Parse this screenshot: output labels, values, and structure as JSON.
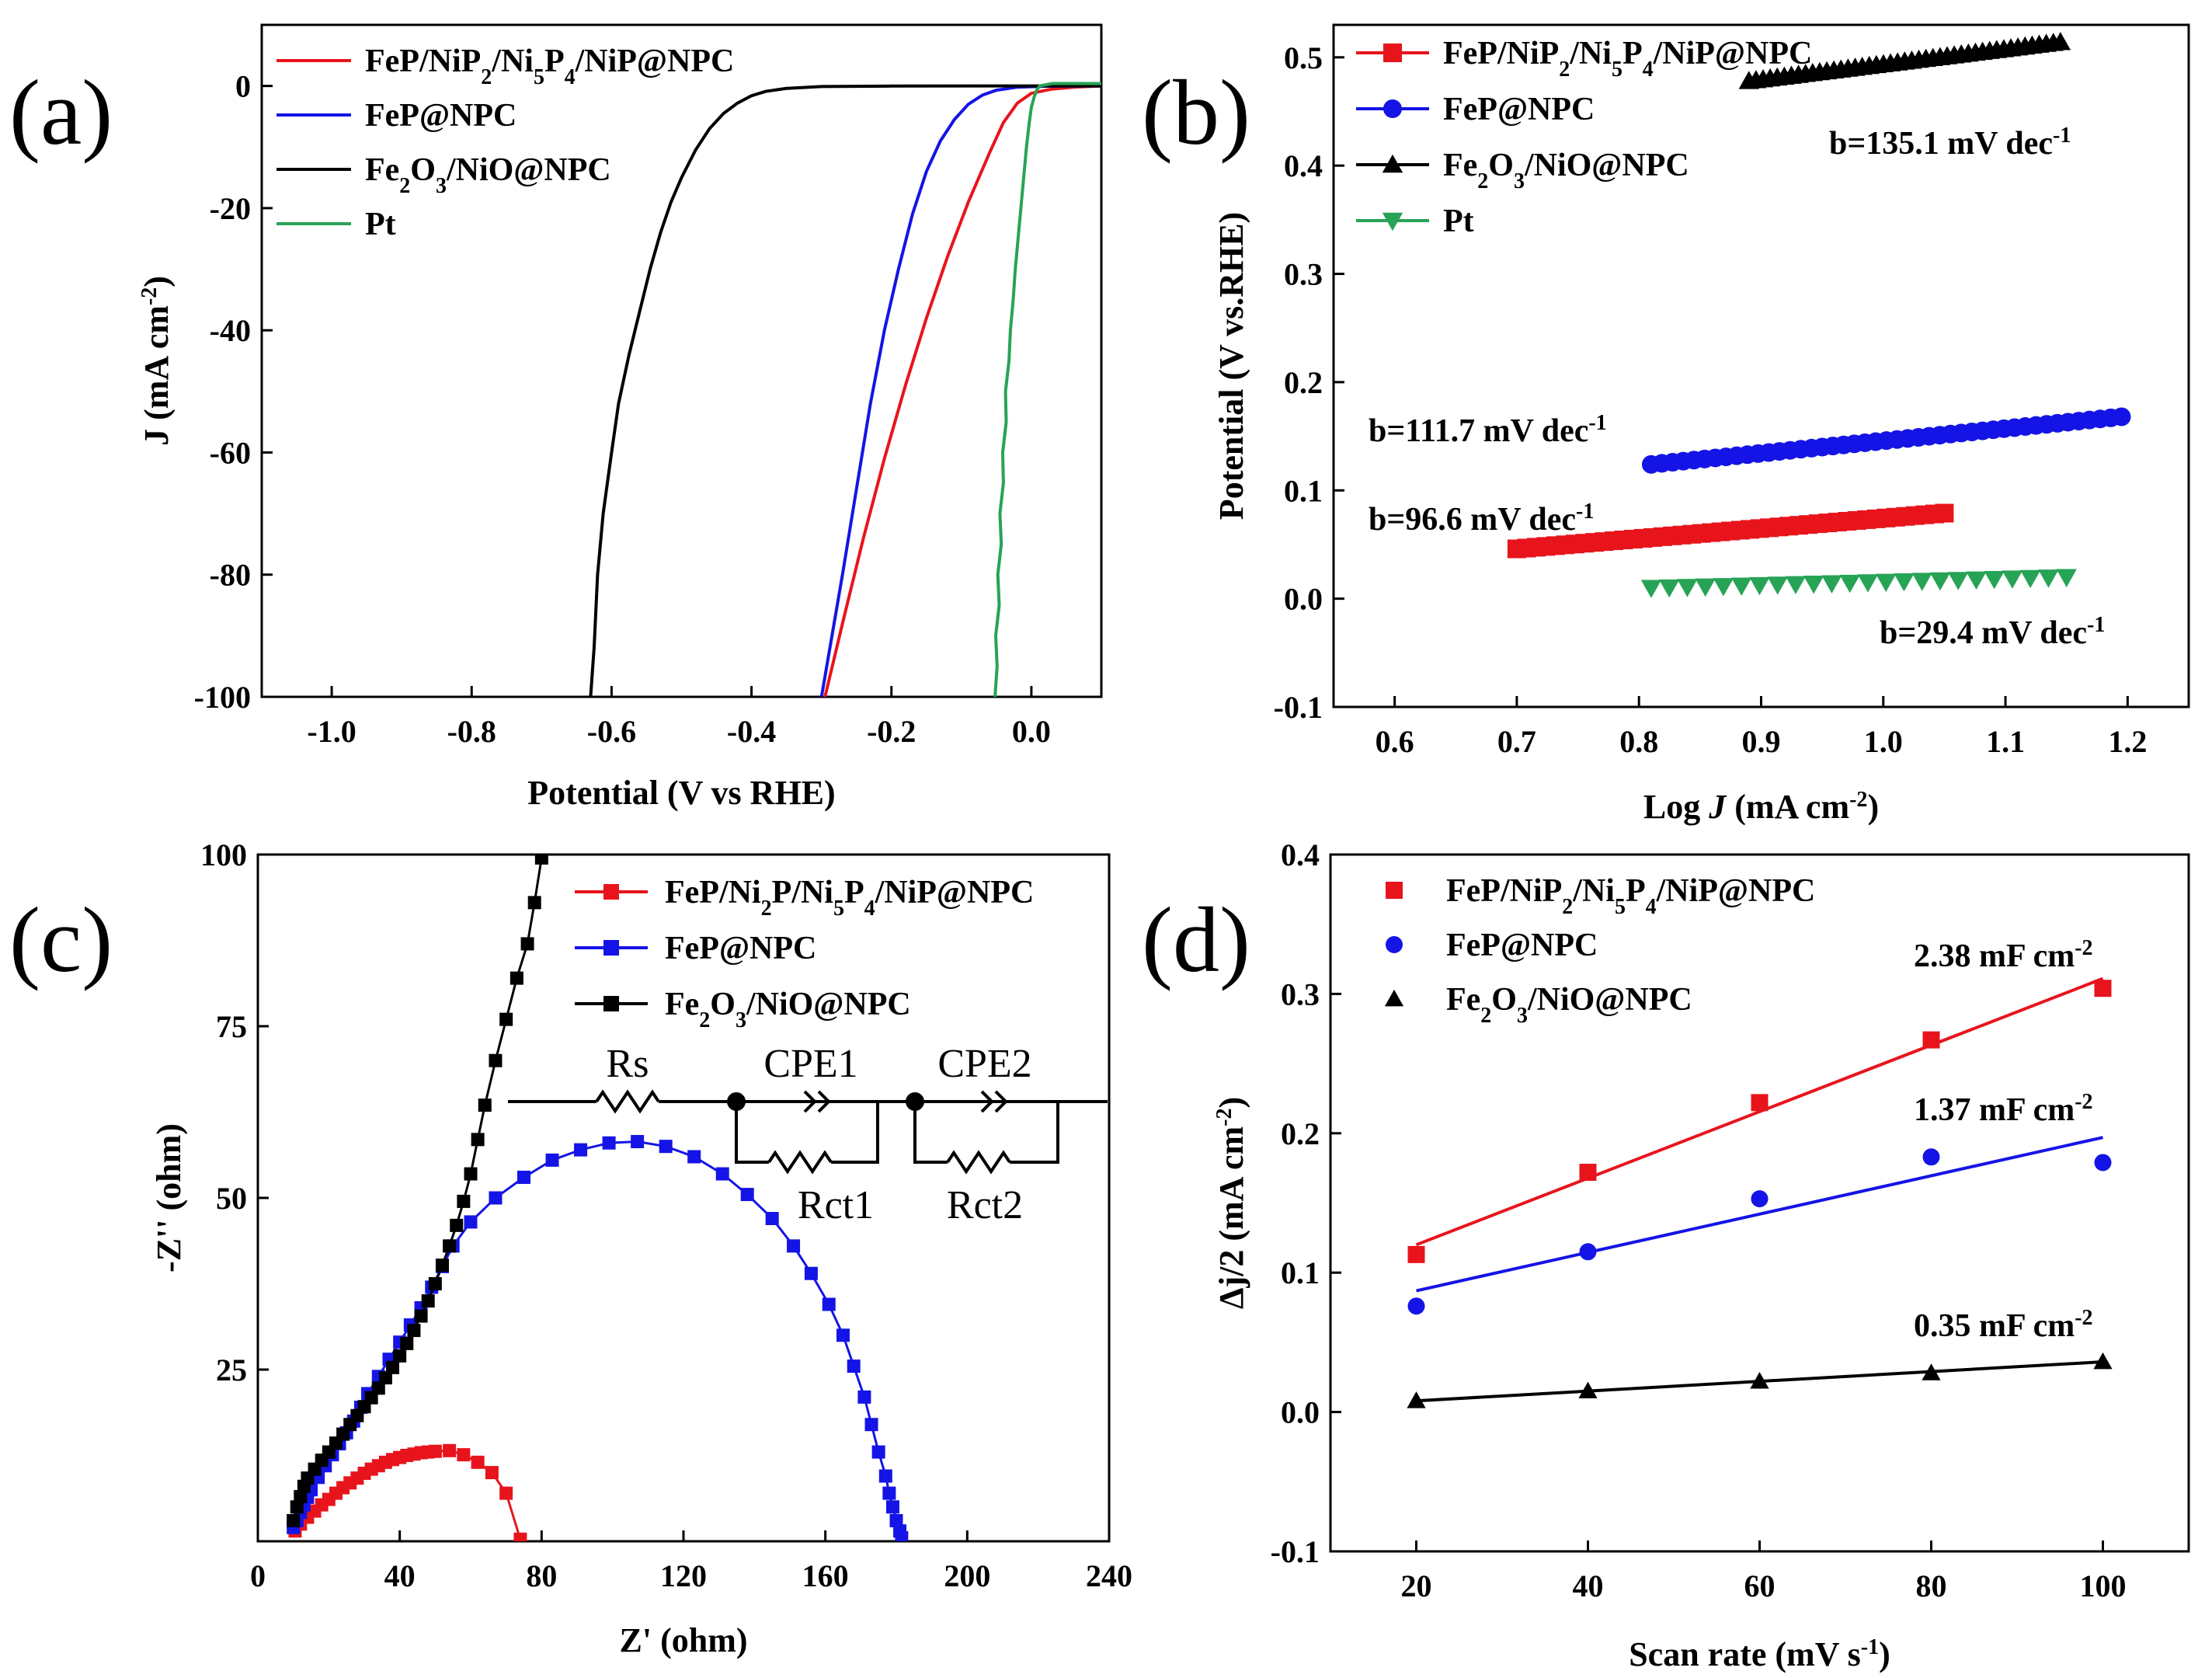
{
  "colors": {
    "red": "#e8141c",
    "blue": "#1414e6",
    "black": "#000000",
    "green": "#27a356"
  },
  "chart_data": [
    {
      "panel_label": "(a)",
      "type": "line",
      "xlabel": "Potential (V vs RHE)",
      "ylabel_main": "J (mA cm",
      "ylabel_sup": "-2",
      "ylabel_end": ")",
      "xlim": [
        -1.1,
        0.1
      ],
      "ylim": [
        -100,
        10
      ],
      "xticks": [
        -1.0,
        -0.8,
        -0.6,
        -0.4,
        -0.2,
        0.0
      ],
      "xtick_labels": [
        "-1.0",
        "-0.8",
        "-0.6",
        "-0.4",
        "-0.2",
        "0.0"
      ],
      "yticks": [
        0,
        -20,
        -40,
        -60,
        -80,
        -100
      ],
      "ytick_labels": [
        "0",
        "-20",
        "-40",
        "-60",
        "-80",
        "-100"
      ],
      "legend": [
        {
          "parts": [
            [
              "FeP/NiP",
              ""
            ],
            [
              "2",
              "sub"
            ],
            [
              "/Ni",
              ""
            ],
            [
              "5",
              "sub"
            ],
            [
              "P",
              ""
            ],
            [
              "4",
              "sub"
            ],
            [
              "/NiP@NPC",
              ""
            ]
          ],
          "color": "red"
        },
        {
          "parts": [
            [
              "FeP@NPC",
              ""
            ]
          ],
          "color": "blue"
        },
        {
          "parts": [
            [
              "Fe",
              ""
            ],
            [
              "2",
              "sub"
            ],
            [
              "O",
              ""
            ],
            [
              "3",
              "sub"
            ],
            [
              "/NiO@NPC",
              ""
            ]
          ],
          "color": "black"
        },
        {
          "parts": [
            [
              "Pt",
              ""
            ]
          ],
          "color": "green"
        }
      ],
      "series": [
        {
          "name": "FeP/NiP2/Ni5P4/NiP@NPC",
          "color": "red",
          "x": [
            -0.295,
            -0.27,
            -0.24,
            -0.21,
            -0.18,
            -0.15,
            -0.12,
            -0.09,
            -0.06,
            -0.04,
            -0.02,
            0.0,
            0.03,
            0.06,
            0.1
          ],
          "y": [
            -100,
            -88,
            -74,
            -61,
            -49,
            -38,
            -28,
            -19,
            -11,
            -6,
            -2.8,
            -1.2,
            -0.5,
            -0.2,
            0
          ]
        },
        {
          "name": "FeP@NPC",
          "color": "blue",
          "x": [
            -0.3,
            -0.285,
            -0.27,
            -0.25,
            -0.23,
            -0.21,
            -0.19,
            -0.17,
            -0.15,
            -0.13,
            -0.11,
            -0.09,
            -0.07,
            -0.05,
            -0.02,
            0.02,
            0.1
          ],
          "y": [
            -100,
            -90,
            -80,
            -66,
            -52,
            -40,
            -30,
            -21,
            -14,
            -9,
            -5.5,
            -3,
            -1.5,
            -0.7,
            -0.2,
            -0.05,
            0
          ]
        },
        {
          "name": "Fe2O3/NiO@NPC",
          "color": "black",
          "x": [
            -0.63,
            -0.625,
            -0.62,
            -0.612,
            -0.6,
            -0.59,
            -0.575,
            -0.56,
            -0.545,
            -0.53,
            -0.515,
            -0.5,
            -0.48,
            -0.46,
            -0.44,
            -0.42,
            -0.4,
            -0.38,
            -0.35,
            -0.3,
            -0.2,
            0.0,
            0.1
          ],
          "y": [
            -100,
            -92,
            -80,
            -70,
            -60,
            -52,
            -44,
            -37,
            -30,
            -24,
            -19,
            -15,
            -10.5,
            -7,
            -4.5,
            -2.8,
            -1.6,
            -0.9,
            -0.4,
            -0.1,
            -0.02,
            0,
            0
          ]
        },
        {
          "name": "Pt",
          "color": "green",
          "x": [
            -0.052,
            -0.049,
            -0.051,
            -0.046,
            -0.048,
            -0.043,
            -0.045,
            -0.04,
            -0.041,
            -0.036,
            -0.037,
            -0.032,
            -0.03,
            -0.026,
            -0.023,
            -0.019,
            -0.015,
            -0.011,
            -0.007,
            -0.003,
            0.0,
            0.004,
            0.008,
            0.012,
            0.03,
            0.1
          ],
          "y": [
            -100,
            -95,
            -90,
            -85,
            -80,
            -75,
            -70,
            -65,
            -60,
            -55,
            -50,
            -45,
            -40,
            -35,
            -30,
            -25,
            -20,
            -15,
            -10,
            -6,
            -3.5,
            -1.8,
            -0.6,
            0,
            0.4,
            0.4
          ]
        }
      ]
    },
    {
      "panel_label": "(b)",
      "type": "scatter",
      "xlabel_pre": "Log ",
      "xlabel_italic": "J",
      "xlabel_main": " (mA cm",
      "xlabel_sup": "-2",
      "xlabel_end": ")",
      "ylabel": "Potential (V vs.RHE)",
      "xlim": [
        0.55,
        1.25
      ],
      "ylim": [
        -0.1,
        0.53
      ],
      "xticks": [
        0.6,
        0.7,
        0.8,
        0.9,
        1.0,
        1.1,
        1.2
      ],
      "xtick_labels": [
        "0.6",
        "0.7",
        "0.8",
        "0.9",
        "1.0",
        "1.1",
        "1.2"
      ],
      "yticks": [
        -0.1,
        0.0,
        0.1,
        0.2,
        0.3,
        0.4,
        0.5
      ],
      "ytick_labels": [
        "-0.1",
        "0.0",
        "0.1",
        "0.2",
        "0.3",
        "0.4",
        "0.5"
      ],
      "legend": [
        {
          "parts": [
            [
              "FeP/NiP",
              ""
            ],
            [
              "2",
              "sub"
            ],
            [
              "/Ni",
              ""
            ],
            [
              "5",
              "sub"
            ],
            [
              "P",
              ""
            ],
            [
              "4",
              "sub"
            ],
            [
              "/NiP@NPC",
              ""
            ]
          ],
          "color": "red",
          "marker": "square"
        },
        {
          "parts": [
            [
              "FeP@NPC",
              ""
            ]
          ],
          "color": "blue",
          "marker": "circle"
        },
        {
          "parts": [
            [
              "Fe",
              ""
            ],
            [
              "2",
              "sub"
            ],
            [
              "O",
              ""
            ],
            [
              "3",
              "sub"
            ],
            [
              "/NiO@NPC",
              ""
            ]
          ],
          "color": "black",
          "marker": "triangle"
        },
        {
          "parts": [
            [
              "Pt",
              ""
            ]
          ],
          "color": "green",
          "marker": "triangle-down"
        }
      ],
      "series": [
        {
          "name": "FeP/NiP2/Ni5P4/NiP@NPC",
          "color": "red",
          "marker": "square",
          "x_start": 0.7,
          "x_end": 1.05,
          "y_start": 0.046,
          "y_end": 0.079,
          "n": 45
        },
        {
          "name": "FeP@NPC",
          "color": "blue",
          "marker": "circle",
          "x_start": 0.81,
          "x_end": 1.195,
          "y_start": 0.124,
          "y_end": 0.168,
          "n": 45
        },
        {
          "name": "Fe2O3/NiO@NPC",
          "color": "black",
          "marker": "triangle",
          "x_start": 0.89,
          "x_end": 1.145,
          "y_start": 0.478,
          "y_end": 0.514,
          "n": 45
        },
        {
          "name": "Pt",
          "color": "green",
          "marker": "triangle-down",
          "x_start": 0.81,
          "x_end": 1.15,
          "y_start": 0.01,
          "y_end": 0.02,
          "n": 24
        }
      ],
      "annotations": [
        {
          "main": "b=135.1 mV dec",
          "sup": "-1"
        },
        {
          "main": "b=111.7 mV dec",
          "sup": "-1"
        },
        {
          "main": "b=96.6 mV dec",
          "sup": "-1"
        },
        {
          "main": "b=29.4 mV dec",
          "sup": "-1"
        }
      ]
    },
    {
      "panel_label": "(c)",
      "type": "scatter",
      "xlabel": "Z' (ohm)",
      "ylabel": "-Z'' (ohm)",
      "xlim": [
        0,
        240
      ],
      "ylim": [
        0,
        100
      ],
      "xticks": [
        0,
        40,
        80,
        120,
        160,
        200,
        240
      ],
      "xtick_labels": [
        "0",
        "40",
        "80",
        "120",
        "160",
        "200",
        "240"
      ],
      "yticks": [
        25,
        50,
        75,
        100
      ],
      "ytick_labels": [
        "25",
        "50",
        "75",
        "100"
      ],
      "legend": [
        {
          "parts": [
            [
              "FeP/Ni",
              ""
            ],
            [
              "2",
              "sub"
            ],
            [
              "P/Ni",
              ""
            ],
            [
              "5",
              "sub"
            ],
            [
              "P",
              ""
            ],
            [
              "4",
              "sub"
            ],
            [
              "/NiP@NPC",
              ""
            ]
          ],
          "color": "red",
          "marker": "square"
        },
        {
          "parts": [
            [
              "FeP@NPC",
              ""
            ]
          ],
          "color": "blue",
          "marker": "square"
        },
        {
          "parts": [
            [
              "Fe",
              ""
            ],
            [
              "2",
              "sub"
            ],
            [
              "O",
              ""
            ],
            [
              "3",
              "sub"
            ],
            [
              "/NiO@NPC",
              ""
            ]
          ],
          "color": "black",
          "marker": "square"
        }
      ],
      "circuit_labels": {
        "rs": "Rs",
        "cpe1": "CPE1",
        "cpe2": "CPE2",
        "rct1": "Rct1",
        "rct2": "Rct2"
      },
      "series": [
        {
          "name": "FeP/Ni2P/Ni5P4/NiP@NPC",
          "color": "red",
          "x": [
            10.5,
            12,
            14,
            16,
            18,
            20,
            22,
            24,
            26,
            28,
            30,
            32,
            34,
            36,
            38,
            40,
            42,
            44,
            46,
            48,
            50,
            54,
            58,
            62,
            66,
            70,
            74
          ],
          "y": [
            1.5,
            2.5,
            3.5,
            4.4,
            5.3,
            6.1,
            7.0,
            7.8,
            8.5,
            9.2,
            9.9,
            10.5,
            11.0,
            11.5,
            11.9,
            12.2,
            12.5,
            12.7,
            12.9,
            13.0,
            13.1,
            13.2,
            12.6,
            11.5,
            10.0,
            7.0,
            0.3
          ]
        },
        {
          "name": "FeP@NPC",
          "color": "blue",
          "x": [
            10,
            11,
            12,
            13,
            14,
            15,
            17,
            19,
            21,
            23,
            25,
            27,
            29,
            31,
            34,
            37,
            40,
            43,
            46,
            49,
            52,
            55,
            60,
            67,
            75,
            83,
            91,
            99,
            107,
            115,
            123,
            131,
            138,
            145,
            151,
            156,
            161,
            165,
            168,
            171,
            173,
            175,
            177,
            178,
            179,
            180,
            181,
            181.5
          ],
          "y": [
            2,
            3,
            4.2,
            5.3,
            6.4,
            7.5,
            9.3,
            11,
            12.6,
            14.2,
            15.8,
            17.5,
            19.5,
            21.5,
            24,
            26.5,
            29,
            31.5,
            34,
            37,
            40,
            43,
            46.5,
            50,
            53,
            55.5,
            57,
            58,
            58.2,
            57.5,
            56,
            53.5,
            50.5,
            47,
            43,
            39,
            34.5,
            30,
            25.5,
            21,
            17,
            13,
            9.5,
            7,
            5,
            3,
            1.5,
            0.5
          ]
        },
        {
          "name": "Fe2O3/NiO@NPC",
          "color": "black",
          "x": [
            10,
            11,
            12,
            13,
            14,
            16,
            18,
            20,
            22,
            24,
            26,
            28,
            30,
            32,
            34,
            36,
            38,
            40,
            42,
            44,
            46,
            48,
            50,
            52,
            54,
            56,
            58,
            60,
            62,
            64,
            67,
            70,
            73,
            76,
            78,
            80
          ],
          "y": [
            3,
            5,
            6.5,
            8,
            9.2,
            10.5,
            11.8,
            13,
            14.3,
            15.6,
            17,
            18.3,
            19.6,
            20.9,
            22.3,
            23.8,
            25.3,
            27,
            28.8,
            30.7,
            32.8,
            35,
            37.5,
            40.2,
            43,
            46,
            49.5,
            53.5,
            58.5,
            63.5,
            70,
            76,
            82,
            87,
            93,
            99.5
          ]
        }
      ]
    },
    {
      "panel_label": "(d)",
      "type": "scatter",
      "xlabel_main": "Scan rate (mV s",
      "xlabel_sup": "-1",
      "xlabel_end": ")",
      "ylabel_main": "Δj/2 (mA cm",
      "ylabel_sup": "-2",
      "ylabel_end": ")",
      "xlim": [
        10,
        110
      ],
      "ylim": [
        -0.1,
        0.4
      ],
      "xticks": [
        20,
        40,
        60,
        80,
        100
      ],
      "xtick_labels": [
        "20",
        "40",
        "60",
        "80",
        "100"
      ],
      "yticks": [
        -0.1,
        0.0,
        0.1,
        0.2,
        0.3,
        0.4
      ],
      "ytick_labels": [
        "-0.1",
        "0.0",
        "0.1",
        "0.2",
        "0.3",
        "0.4"
      ],
      "legend": [
        {
          "parts": [
            [
              "FeP/NiP",
              ""
            ],
            [
              "2",
              "sub"
            ],
            [
              "/Ni",
              ""
            ],
            [
              "5",
              "sub"
            ],
            [
              "P",
              ""
            ],
            [
              "4",
              "sub"
            ],
            [
              "/NiP@NPC",
              ""
            ]
          ],
          "color": "red",
          "marker": "square"
        },
        {
          "parts": [
            [
              "FeP@NPC",
              ""
            ]
          ],
          "color": "blue",
          "marker": "circle"
        },
        {
          "parts": [
            [
              "Fe",
              ""
            ],
            [
              "2",
              "sub"
            ],
            [
              "O",
              ""
            ],
            [
              "3",
              "sub"
            ],
            [
              "/NiO@NPC",
              ""
            ]
          ],
          "color": "black",
          "marker": "triangle"
        }
      ],
      "series": [
        {
          "name": "FeP/NiP2/Ni5P4/NiP@NPC",
          "color": "red",
          "marker": "square",
          "x": [
            20,
            40,
            60,
            80,
            100
          ],
          "y": [
            0.113,
            0.172,
            0.222,
            0.267,
            0.304
          ],
          "fit": [
            0.12,
            0.311
          ]
        },
        {
          "name": "FeP@NPC",
          "color": "blue",
          "marker": "circle",
          "x": [
            20,
            40,
            60,
            80,
            100
          ],
          "y": [
            0.076,
            0.115,
            0.153,
            0.183,
            0.179
          ],
          "fit": [
            0.087,
            0.197
          ]
        },
        {
          "name": "Fe2O3/NiO@NPC",
          "color": "black",
          "marker": "triangle",
          "x": [
            20,
            40,
            60,
            80,
            100
          ],
          "y": [
            0.008,
            0.015,
            0.022,
            0.028,
            0.036
          ],
          "fit": [
            0.008,
            0.036
          ]
        }
      ],
      "annotations": [
        {
          "main": "2.38 mF cm",
          "sup": "-2"
        },
        {
          "main": "1.37 mF cm",
          "sup": "-2"
        },
        {
          "main": "0.35 mF cm",
          "sup": "-2"
        }
      ]
    }
  ]
}
